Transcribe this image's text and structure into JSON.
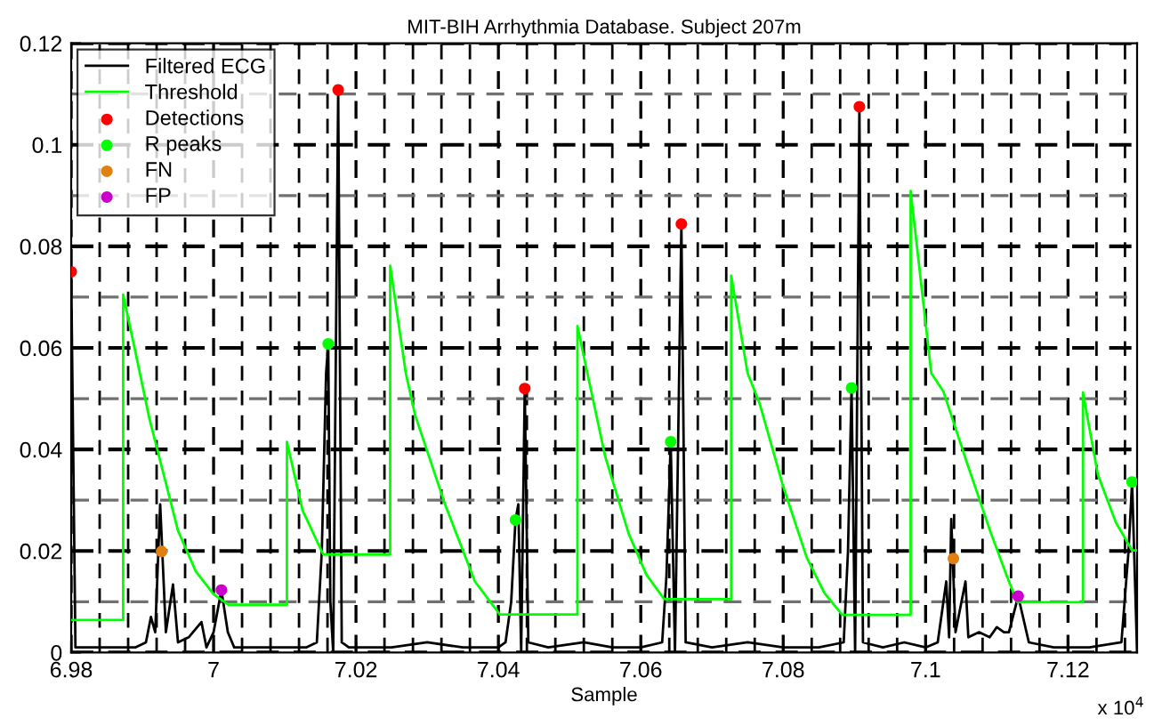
{
  "chart_data": {
    "type": "line",
    "title": "MIT-BIH Arrhythmia Database. Subject 207m",
    "xlabel": "Sample",
    "annotations": [
      "x 10$^{4}$"
    ],
    "xlim": [
      6.98,
      7.1297
    ],
    "ylim": [
      0,
      0.12
    ],
    "xticks": [
      6.98,
      7,
      7.02,
      7.04,
      7.06,
      7.08,
      7.1,
      7.12
    ],
    "yticks": [
      0,
      0.02,
      0.04,
      0.06,
      0.08,
      0.1,
      0.12
    ],
    "grid": true,
    "legend": "top left",
    "series": [
      {
        "name": "Filtered ECG",
        "color": "#000000",
        "x": [
          6.98,
          6.9806,
          6.983,
          6.986,
          6.989,
          6.9905,
          6.9912,
          6.9918,
          6.9925,
          6.9933,
          6.9943,
          6.995,
          6.9965,
          6.9983,
          6.999,
          7.0,
          7.0011,
          7.002,
          7.0029,
          7.006,
          7.01,
          7.013,
          7.0145,
          7.0152,
          7.0158,
          7.0161,
          7.0164,
          7.0168,
          7.0175,
          7.018,
          7.019,
          7.025,
          7.03,
          7.035,
          7.04,
          7.041,
          7.0418,
          7.0424,
          7.0428,
          7.0432,
          7.0437,
          7.0442,
          7.047,
          7.052,
          7.056,
          7.06,
          7.063,
          7.0636,
          7.0642,
          7.0648,
          7.0657,
          7.0663,
          7.07,
          7.075,
          7.08,
          7.085,
          7.0885,
          7.0891,
          7.0896,
          7.0901,
          7.0907,
          7.0912,
          7.094,
          7.097,
          7.1,
          7.1017,
          7.1029,
          7.1033,
          7.1036,
          7.1042,
          7.1056,
          7.106,
          7.1075,
          7.109,
          7.11,
          7.111,
          7.1117,
          7.113,
          7.1145,
          7.118,
          7.123,
          7.1275,
          7.1285,
          7.129,
          7.1297
        ],
        "values": [
          0.075,
          0.001,
          0.001,
          0.001,
          0.001,
          0.002,
          0.007,
          0.004,
          0.0292,
          0.004,
          0.0134,
          0.002,
          0.003,
          0.006,
          0.001,
          0.004,
          0.0123,
          0.004,
          0.001,
          0.001,
          0.001,
          0.001,
          0.002,
          0.02,
          0.055,
          0.0608,
          0.01,
          0.0,
          0.1108,
          0.002,
          0.001,
          0.001,
          0.002,
          0.001,
          0.001,
          0.002,
          0.01,
          0.0261,
          0.0292,
          0.0,
          0.052,
          0.002,
          0.001,
          0.002,
          0.001,
          0.001,
          0.002,
          0.015,
          0.0415,
          0.0,
          0.0844,
          0.002,
          0.001,
          0.002,
          0.001,
          0.001,
          0.002,
          0.02,
          0.0521,
          0.0,
          0.1075,
          0.002,
          0.001,
          0.002,
          0.001,
          0.002,
          0.014,
          0.003,
          0.0263,
          0.004,
          0.014,
          0.003,
          0.004,
          0.003,
          0.005,
          0.004,
          0.004,
          0.0111,
          0.002,
          0.001,
          0.001,
          0.002,
          0.02,
          0.0336,
          0.0
        ]
      },
      {
        "name": "Threshold",
        "color": "#00ff00",
        "x": [
          6.98,
          6.9873,
          6.9873,
          6.9892,
          6.991,
          6.993,
          6.995,
          6.9975,
          7.0,
          7.0021,
          7.0103,
          7.0103,
          7.0125,
          7.0154,
          7.0248,
          7.0248,
          7.027,
          7.0283,
          7.0325,
          7.0367,
          7.0402,
          7.0511,
          7.0511,
          7.0525,
          7.055,
          7.0583,
          7.0608,
          7.0633,
          7.0727,
          7.0727,
          7.075,
          7.0767,
          7.08,
          7.0833,
          7.0858,
          7.0883,
          7.0979,
          7.0979,
          7.1008,
          7.1025,
          7.1058,
          7.1092,
          7.1117,
          7.1129,
          7.1221,
          7.1221,
          7.1242,
          7.1267,
          7.129,
          7.1297
        ],
        "values": [
          0.0064,
          0.0064,
          0.0705,
          0.058,
          0.046,
          0.035,
          0.024,
          0.016,
          0.0115,
          0.0094,
          0.0094,
          0.0415,
          0.028,
          0.0193,
          0.0193,
          0.0762,
          0.055,
          0.0468,
          0.0292,
          0.014,
          0.0075,
          0.0075,
          0.0643,
          0.055,
          0.0386,
          0.0234,
          0.0153,
          0.0105,
          0.0105,
          0.0742,
          0.055,
          0.049,
          0.0327,
          0.0187,
          0.0117,
          0.0074,
          0.0074,
          0.0909,
          0.055,
          0.0514,
          0.0374,
          0.0234,
          0.014,
          0.0099,
          0.0099,
          0.0512,
          0.035,
          0.0257,
          0.0201,
          0.0201
        ]
      },
      {
        "name": "Detections",
        "type": "scatter",
        "marker": "circle",
        "color": "#ff0000",
        "x": [
          6.98,
          7.0175,
          7.0437,
          7.0657,
          7.0907
        ],
        "values": [
          0.075,
          0.1108,
          0.052,
          0.0844,
          0.1075
        ]
      },
      {
        "name": "R peaks",
        "type": "scatter",
        "marker": "circle",
        "color": "#00ff00",
        "x": [
          7.0161,
          7.0424,
          7.0642,
          7.0896,
          7.129
        ],
        "values": [
          0.0608,
          0.0261,
          0.0415,
          0.0521,
          0.0336
        ]
      },
      {
        "name": "FN",
        "type": "scatter",
        "marker": "circle",
        "color": "#e08010",
        "x": [
          6.9927,
          7.1039
        ],
        "values": [
          0.0199,
          0.0185
        ]
      },
      {
        "name": "FP",
        "type": "scatter",
        "marker": "circle",
        "color": "#cc00cc",
        "x": [
          7.0011,
          7.113
        ],
        "values": [
          0.0123,
          0.0111
        ]
      }
    ]
  }
}
